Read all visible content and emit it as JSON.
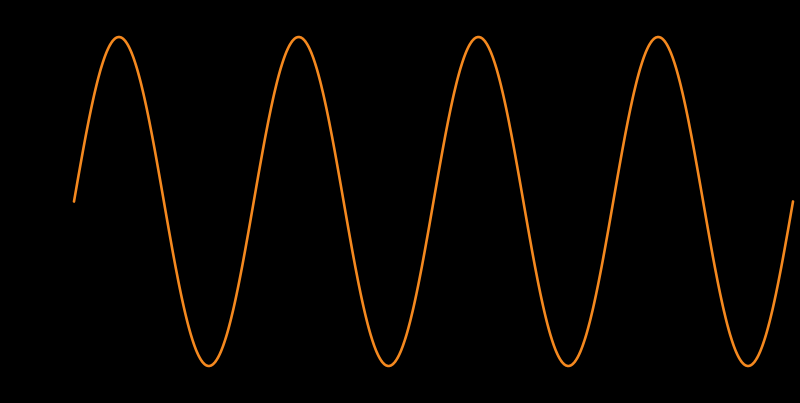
{
  "chart_data": {
    "type": "line",
    "title": "",
    "xlabel": "",
    "ylabel": "",
    "grid": false,
    "legend": "none",
    "background_color": "#000000",
    "series": [
      {
        "color": "#f5891f",
        "function": "sine",
        "cycles": 4,
        "x_range": [
          0,
          4
        ],
        "amplitude": 1,
        "start_value": 0,
        "end_value": 0
      }
    ],
    "xlim": [
      0,
      4
    ],
    "ylim": [
      -1,
      1
    ]
  }
}
